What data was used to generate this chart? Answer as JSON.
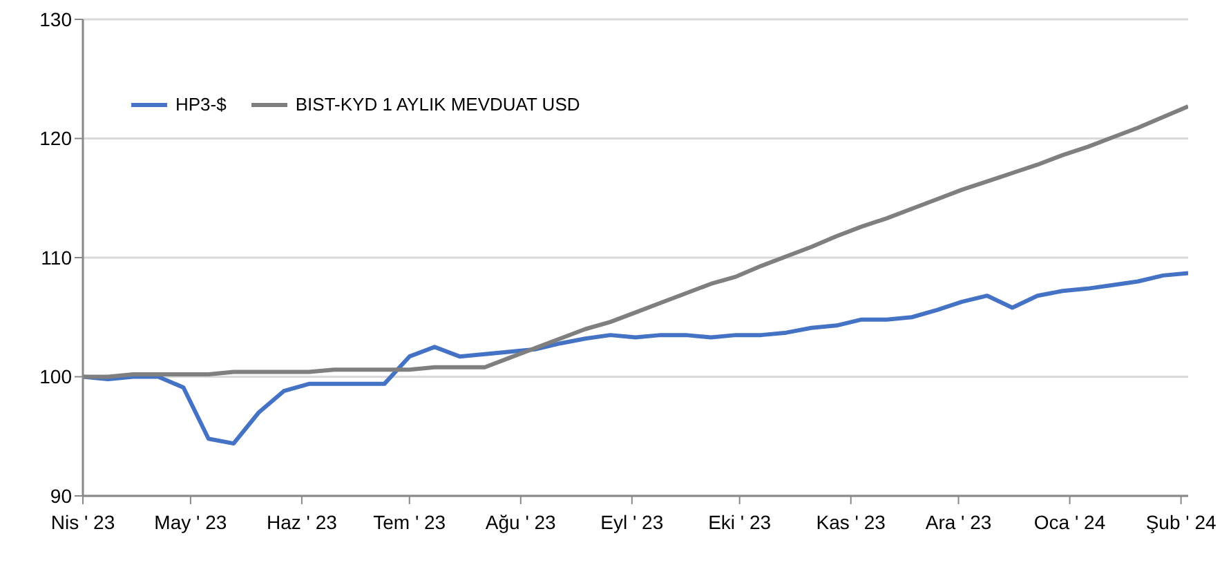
{
  "chart_data": {
    "type": "line",
    "x": [
      "2023-04-01",
      "2023-04-08",
      "2023-04-15",
      "2023-04-22",
      "2023-04-29",
      "2023-05-06",
      "2023-05-13",
      "2023-05-20",
      "2023-05-27",
      "2023-06-03",
      "2023-06-10",
      "2023-06-17",
      "2023-06-24",
      "2023-07-01",
      "2023-07-08",
      "2023-07-15",
      "2023-07-22",
      "2023-07-29",
      "2023-08-05",
      "2023-08-12",
      "2023-08-19",
      "2023-08-26",
      "2023-09-02",
      "2023-09-09",
      "2023-09-16",
      "2023-09-23",
      "2023-09-30",
      "2023-10-07",
      "2023-10-14",
      "2023-10-21",
      "2023-10-28",
      "2023-11-04",
      "2023-11-11",
      "2023-11-18",
      "2023-11-25",
      "2023-12-02",
      "2023-12-09",
      "2023-12-16",
      "2023-12-23",
      "2023-12-30",
      "2024-01-06",
      "2024-01-13",
      "2024-01-20",
      "2024-01-27",
      "2024-02-03"
    ],
    "series": [
      {
        "name": "HP3-$",
        "color": "#4472c4",
        "values": [
          100.0,
          99.8,
          100.0,
          100.0,
          99.1,
          94.8,
          94.4,
          97.0,
          98.8,
          99.4,
          99.4,
          99.4,
          99.4,
          101.7,
          102.5,
          101.7,
          101.9,
          102.1,
          102.3,
          102.8,
          103.2,
          103.5,
          103.3,
          103.5,
          103.5,
          103.3,
          103.5,
          103.5,
          103.7,
          104.1,
          104.3,
          104.8,
          104.8,
          105.0,
          105.6,
          106.3,
          106.8,
          105.8,
          106.8,
          107.2,
          107.4,
          107.7,
          108.0,
          108.5,
          108.7
        ]
      },
      {
        "name": "BIST-KYD 1 AYLIK MEVDUAT USD",
        "color": "#7f7f7f",
        "values": [
          100.0,
          100.0,
          100.2,
          100.2,
          100.2,
          100.2,
          100.4,
          100.4,
          100.4,
          100.4,
          100.6,
          100.6,
          100.6,
          100.6,
          100.8,
          100.8,
          100.8,
          101.6,
          102.4,
          103.2,
          104.0,
          104.6,
          105.4,
          106.2,
          107.0,
          107.8,
          108.4,
          109.3,
          110.1,
          110.9,
          111.8,
          112.6,
          113.3,
          114.1,
          114.9,
          115.7,
          116.4,
          117.1,
          117.8,
          118.6,
          119.3,
          120.1,
          120.9,
          121.8,
          122.7
        ]
      }
    ],
    "xlim": [
      "2023-04-01",
      "2024-02-03"
    ],
    "xticks": [
      {
        "value": "2023-04-01",
        "label": "Nis ' 23"
      },
      {
        "value": "2023-05-01",
        "label": "May ' 23"
      },
      {
        "value": "2023-06-01",
        "label": "Haz ' 23"
      },
      {
        "value": "2023-07-01",
        "label": "Tem ' 23"
      },
      {
        "value": "2023-08-01",
        "label": "Ağu ' 23"
      },
      {
        "value": "2023-09-01",
        "label": "Eyl ' 23"
      },
      {
        "value": "2023-10-01",
        "label": "Eki ' 23"
      },
      {
        "value": "2023-11-01",
        "label": "Kas ' 23"
      },
      {
        "value": "2023-12-01",
        "label": "Ara ' 23"
      },
      {
        "value": "2024-01-01",
        "label": "Oca ' 24"
      },
      {
        "value": "2024-02-01",
        "label": "Şub ' 24"
      }
    ],
    "ylim": [
      90,
      130
    ],
    "yticks": [
      90,
      100,
      110,
      120,
      130
    ],
    "grid": "y",
    "legend": "top left",
    "marker": "none",
    "line_style": "solid"
  }
}
